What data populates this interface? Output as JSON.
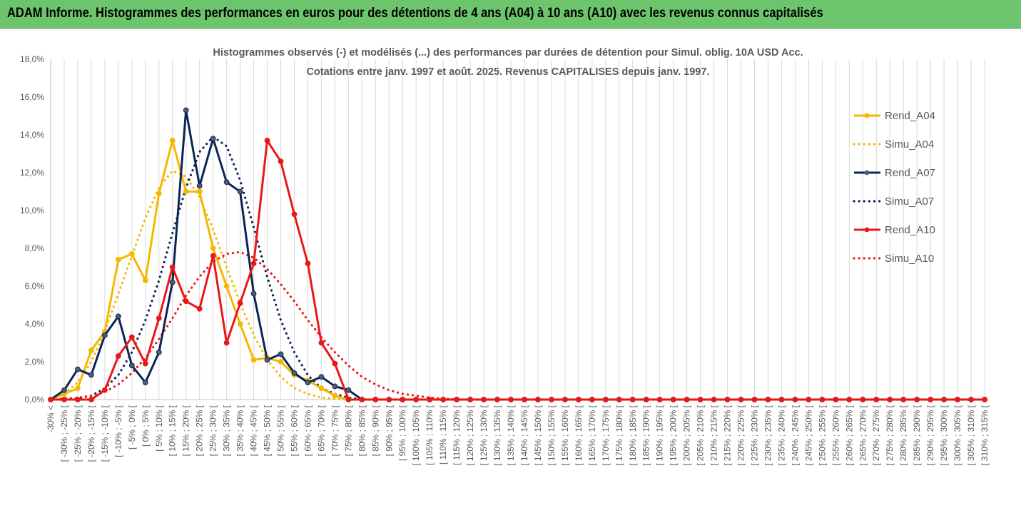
{
  "banner": {
    "title": "ADAM Informe. Histogrammes des performances en euros pour des détentions de 4 ans (A04) à 10 ans (A10) avec les revenus connus capitalisés"
  },
  "chart_data": {
    "type": "line",
    "title_line1": "Histogrammes observés (-) et modélisés (...) des performances par durées de détention pour Simul. oblig. 10A USD Acc.",
    "title_line2": "Cotations entre janv. 1997 et août. 2025. Revenus CAPITALISES depuis janv. 1997.",
    "xlabel": "",
    "ylabel": "",
    "ylim": [
      0,
      18
    ],
    "yticks": [
      "0,0%",
      "2,0%",
      "4,0%",
      "6,0%",
      "8,0%",
      "10,0%",
      "12,0%",
      "14,0%",
      "16,0%",
      "18,0%"
    ],
    "grid": "vertical",
    "legend_position": "right",
    "categories": [
      "-30% <",
      "[ -30% ; -25% [",
      "[ -25% ; -20% [",
      "[ -20% ; -15% [",
      "[ -15% ; -10% [",
      "[ -10% ; -5% [",
      "[ -5% ; 0% [",
      "[ 0% ; 5% [",
      "[ 5% ; 10% [",
      "[ 10% ; 15% [",
      "[ 15% ; 20% [",
      "[ 20% ; 25% [",
      "[ 25% ; 30% [",
      "[ 30% ; 35% [",
      "[ 35% ; 40% [",
      "[ 40% ; 45% [",
      "[ 45% ; 50% [",
      "[ 50% ; 55% [",
      "[ 55% ; 60% [",
      "[ 60% ; 65% [",
      "[ 65% ; 70% [",
      "[ 70% ; 75% [",
      "[ 75% ; 80% [",
      "[ 80% ; 85% [",
      "[ 85% ; 90% [",
      "[ 90% ; 95% [",
      "[ 95% ; 100% [",
      "[ 100% ; 105% [",
      "[ 105% ; 110% [",
      "[ 110% ; 115% [",
      "[ 115% ; 120% [",
      "[ 120% ; 125% [",
      "[ 125% ; 130% [",
      "[ 130% ; 135% [",
      "[ 135% ; 140% [",
      "[ 140% ; 145% [",
      "[ 145% ; 150% [",
      "[ 150% ; 155% [",
      "[ 155% ; 160% [",
      "[ 160% ; 165% [",
      "[ 165% ; 170% [",
      "[ 170% ; 175% [",
      "[ 175% ; 180% [",
      "[ 180% ; 185% [",
      "[ 185% ; 190% [",
      "[ 190% ; 195% [",
      "[ 195% ; 200% [",
      "[ 200% ; 205% [",
      "[ 205% ; 210% [",
      "[ 210% ; 215% [",
      "[ 215% ; 220% [",
      "[ 220% ; 225% [",
      "[ 225% ; 230% [",
      "[ 230% ; 235% [",
      "[ 235% ; 240% [",
      "[ 240% ; 245% [",
      "[ 245% ; 250% [",
      "[ 250% ; 255% [",
      "[ 255% ; 260% [",
      "[ 260% ; 265% [",
      "[ 265% ; 270% [",
      "[ 270% ; 275% [",
      "[ 275% ; 280% [",
      "[ 280% ; 285% [",
      "[ 285% ; 290% [",
      "[ 290% ; 295% [",
      "[ 295% ; 300% [",
      "[ 300% ; 305% [",
      "[ 305% ; 310% [",
      "[ 310% ; 315% ["
    ],
    "series": [
      {
        "name": "Rend_A04",
        "style": "solid",
        "color": "#f5b800",
        "values": [
          0.0,
          0.3,
          0.6,
          2.6,
          3.6,
          7.4,
          7.7,
          6.3,
          10.9,
          13.7,
          11.0,
          11.0,
          8.0,
          6.0,
          4.0,
          2.1,
          2.2,
          2.0,
          1.3,
          1.0,
          0.6,
          0.2,
          0.0,
          0.0,
          0.0,
          0.0,
          0.0,
          0.0,
          0.0,
          0.0,
          0.0,
          0.0,
          0.0,
          0.0,
          0.0,
          0.0,
          0.0,
          0.0,
          0.0,
          0.0,
          0.0,
          0.0,
          0.0,
          0.0,
          0.0,
          0.0,
          0.0,
          0.0,
          0.0,
          0.0,
          0.0,
          0.0,
          0.0,
          0.0,
          0.0,
          0.0,
          0.0,
          0.0,
          0.0,
          0.0,
          0.0,
          0.0,
          0.0,
          0.0,
          0.0,
          0.0,
          0.0,
          0.0,
          0.0,
          0.0
        ]
      },
      {
        "name": "Simu_A04",
        "style": "dotted",
        "color": "#f5b800",
        "values": [
          0.0,
          0.3,
          0.9,
          2.0,
          3.6,
          5.6,
          7.6,
          9.6,
          11.2,
          12.1,
          11.8,
          10.7,
          9.0,
          7.0,
          5.1,
          3.4,
          2.1,
          1.2,
          0.6,
          0.3,
          0.1,
          0.05,
          0.0,
          0.0,
          0.0,
          0.0,
          0.0,
          0.0,
          0.0,
          0.0,
          0.0,
          0.0,
          0.0,
          0.0,
          0.0,
          0.0,
          0.0,
          0.0,
          0.0,
          0.0,
          0.0,
          0.0,
          0.0,
          0.0,
          0.0,
          0.0,
          0.0,
          0.0,
          0.0,
          0.0,
          0.0,
          0.0,
          0.0,
          0.0,
          0.0,
          0.0,
          0.0,
          0.0,
          0.0,
          0.0,
          0.0,
          0.0,
          0.0,
          0.0,
          0.0,
          0.0,
          0.0,
          0.0,
          0.0,
          0.0
        ]
      },
      {
        "name": "Rend_A07",
        "style": "solid",
        "color": "#0d2456",
        "values": [
          0.0,
          0.5,
          1.6,
          1.3,
          3.4,
          4.4,
          1.8,
          0.9,
          2.5,
          6.2,
          15.3,
          11.3,
          13.8,
          11.5,
          11.0,
          5.6,
          2.1,
          2.4,
          1.4,
          0.9,
          1.2,
          0.7,
          0.5,
          0.0,
          0.0,
          0.0,
          0.0,
          0.0,
          0.0,
          0.0,
          0.0,
          0.0,
          0.0,
          0.0,
          0.0,
          0.0,
          0.0,
          0.0,
          0.0,
          0.0,
          0.0,
          0.0,
          0.0,
          0.0,
          0.0,
          0.0,
          0.0,
          0.0,
          0.0,
          0.0,
          0.0,
          0.0,
          0.0,
          0.0,
          0.0,
          0.0,
          0.0,
          0.0,
          0.0,
          0.0,
          0.0,
          0.0,
          0.0,
          0.0,
          0.0,
          0.0,
          0.0,
          0.0,
          0.0,
          0.0
        ]
      },
      {
        "name": "Simu_A07",
        "style": "dotted",
        "color": "#0d2456",
        "values": [
          0.0,
          0.0,
          0.05,
          0.2,
          0.6,
          1.3,
          2.5,
          4.2,
          6.3,
          8.8,
          11.2,
          13.1,
          13.9,
          13.4,
          11.6,
          9.1,
          6.5,
          4.2,
          2.5,
          1.3,
          0.6,
          0.3,
          0.1,
          0.0,
          0.0,
          0.0,
          0.0,
          0.0,
          0.0,
          0.0,
          0.0,
          0.0,
          0.0,
          0.0,
          0.0,
          0.0,
          0.0,
          0.0,
          0.0,
          0.0,
          0.0,
          0.0,
          0.0,
          0.0,
          0.0,
          0.0,
          0.0,
          0.0,
          0.0,
          0.0,
          0.0,
          0.0,
          0.0,
          0.0,
          0.0,
          0.0,
          0.0,
          0.0,
          0.0,
          0.0,
          0.0,
          0.0,
          0.0,
          0.0,
          0.0,
          0.0,
          0.0,
          0.0,
          0.0,
          0.0
        ]
      },
      {
        "name": "Rend_A10",
        "style": "solid",
        "color": "#e81818",
        "values": [
          0.0,
          0.0,
          0.0,
          0.0,
          0.5,
          2.3,
          3.3,
          1.9,
          4.3,
          7.0,
          5.2,
          4.8,
          7.6,
          3.0,
          5.1,
          7.2,
          13.7,
          12.6,
          9.8,
          7.2,
          3.0,
          1.9,
          0.0,
          0.0,
          0.0,
          0.0,
          0.0,
          0.0,
          0.0,
          0.0,
          0.0,
          0.0,
          0.0,
          0.0,
          0.0,
          0.0,
          0.0,
          0.0,
          0.0,
          0.0,
          0.0,
          0.0,
          0.0,
          0.0,
          0.0,
          0.0,
          0.0,
          0.0,
          0.0,
          0.0,
          0.0,
          0.0,
          0.0,
          0.0,
          0.0,
          0.0,
          0.0,
          0.0,
          0.0,
          0.0,
          0.0,
          0.0,
          0.0,
          0.0,
          0.0,
          0.0,
          0.0,
          0.0,
          0.0,
          0.0
        ]
      },
      {
        "name": "Simu_A10",
        "style": "dotted",
        "color": "#e81818",
        "values": [
          0.0,
          0.05,
          0.1,
          0.2,
          0.4,
          0.8,
          1.4,
          2.2,
          3.2,
          4.3,
          5.5,
          6.5,
          7.3,
          7.7,
          7.8,
          7.5,
          6.9,
          6.1,
          5.2,
          4.2,
          3.3,
          2.5,
          1.8,
          1.2,
          0.8,
          0.5,
          0.3,
          0.2,
          0.1,
          0.05,
          0.0,
          0.0,
          0.0,
          0.0,
          0.0,
          0.0,
          0.0,
          0.0,
          0.0,
          0.0,
          0.0,
          0.0,
          0.0,
          0.0,
          0.0,
          0.0,
          0.0,
          0.0,
          0.0,
          0.0,
          0.0,
          0.0,
          0.0,
          0.0,
          0.0,
          0.0,
          0.0,
          0.0,
          0.0,
          0.0,
          0.0,
          0.0,
          0.0,
          0.0,
          0.0,
          0.0,
          0.0,
          0.0,
          0.0,
          0.0
        ]
      }
    ]
  }
}
